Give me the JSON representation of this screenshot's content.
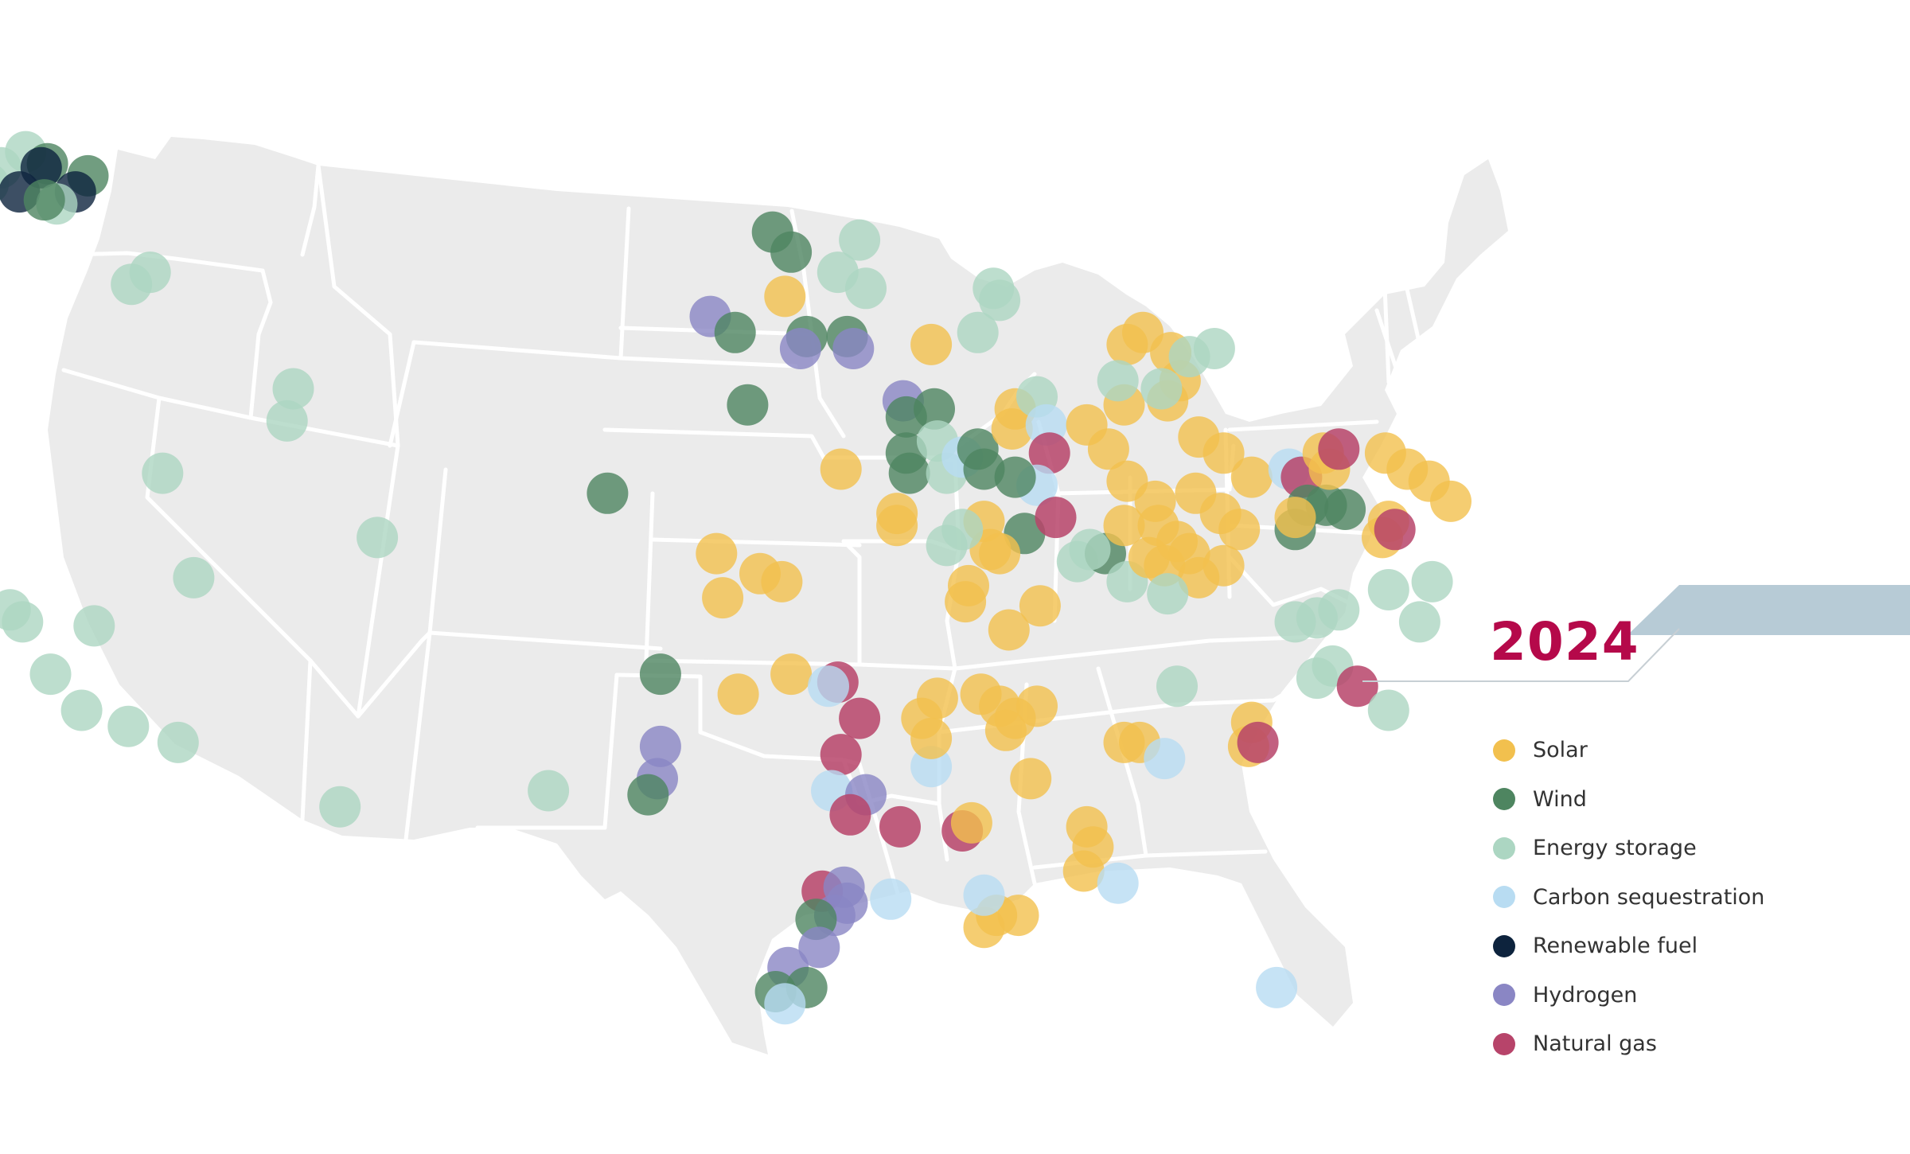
{
  "year": "2024",
  "colors": {
    "year_text": "#b5094a",
    "ribbon": "#b7cbd6",
    "land": "#ebebeb",
    "border": "#ffffff"
  },
  "legend": [
    {
      "key": "solar",
      "label": "Solar",
      "color": "#f2c04e"
    },
    {
      "key": "wind",
      "label": "Wind",
      "color": "#4e8560"
    },
    {
      "key": "storage",
      "label": "Energy storage",
      "color": "#acd6c2"
    },
    {
      "key": "carbon",
      "label": "Carbon sequestration",
      "color": "#b8dcf2"
    },
    {
      "key": "renewable_fuel",
      "label": "Renewable fuel",
      "color": "#0d233d"
    },
    {
      "key": "hydrogen",
      "label": "Hydrogen",
      "color": "#8a86c4"
    },
    {
      "key": "natural_gas",
      "label": "Natural gas",
      "color": "#b7446a"
    }
  ],
  "projects": [
    {
      "type": "storage",
      "lat": 48.9,
      "lon": -121.4
    },
    {
      "type": "storage",
      "lat": 48.5,
      "lon": -122.2
    },
    {
      "type": "wind",
      "lat": 48.6,
      "lon": -120.7
    },
    {
      "type": "storage",
      "lat": 48.1,
      "lon": -122.6
    },
    {
      "type": "renewable_fuel",
      "lat": 48.5,
      "lon": -120.9
    },
    {
      "type": "wind",
      "lat": 48.3,
      "lon": -119.4
    },
    {
      "type": "renewable_fuel",
      "lat": 47.9,
      "lon": -121.6
    },
    {
      "type": "renewable_fuel",
      "lat": 47.9,
      "lon": -119.8
    },
    {
      "type": "storage",
      "lat": 47.6,
      "lon": -120.4
    },
    {
      "type": "wind",
      "lat": 47.7,
      "lon": -120.8
    },
    {
      "type": "storage",
      "lat": 47.3,
      "lon": -123.3
    },
    {
      "type": "storage",
      "lat": 47.0,
      "lon": -122.9
    },
    {
      "type": "storage",
      "lat": 46.6,
      "lon": -123.1
    },
    {
      "type": "wind",
      "lat": 46.7,
      "lon": -124.0
    },
    {
      "type": "storage",
      "lat": 45.6,
      "lon": -118.0
    },
    {
      "type": "storage",
      "lat": 45.9,
      "lon": -117.4
    },
    {
      "type": "storage",
      "lat": 44.3,
      "lon": -124.0
    },
    {
      "type": "storage",
      "lat": 41.9,
      "lon": -123.6
    },
    {
      "type": "storage",
      "lat": 41.3,
      "lon": -124.0
    },
    {
      "type": "storage",
      "lat": 43.0,
      "lon": -112.8
    },
    {
      "type": "storage",
      "lat": 42.2,
      "lon": -113.0
    },
    {
      "type": "storage",
      "lat": 40.9,
      "lon": -117.0
    },
    {
      "type": "storage",
      "lat": 39.3,
      "lon": -110.1
    },
    {
      "type": "storage",
      "lat": 38.3,
      "lon": -116.0
    },
    {
      "type": "storage",
      "lat": 37.5,
      "lon": -121.9
    },
    {
      "type": "storage",
      "lat": 37.2,
      "lon": -121.5
    },
    {
      "type": "storage",
      "lat": 37.1,
      "lon": -119.2
    },
    {
      "type": "storage",
      "lat": 35.9,
      "lon": -120.6
    },
    {
      "type": "storage",
      "lat": 35.0,
      "lon": -119.6
    },
    {
      "type": "storage",
      "lat": 34.6,
      "lon": -118.1
    },
    {
      "type": "storage",
      "lat": 34.2,
      "lon": -116.5
    },
    {
      "type": "storage",
      "lat": 32.6,
      "lon": -111.3
    },
    {
      "type": "storage",
      "lat": 33.0,
      "lon": -104.6
    },
    {
      "type": "wind",
      "lat": 40.4,
      "lon": -102.7
    },
    {
      "type": "wind",
      "lat": 35.9,
      "lon": -101.0
    },
    {
      "type": "hydrogen",
      "lat": 34.1,
      "lon": -101.0
    },
    {
      "type": "hydrogen",
      "lat": 33.3,
      "lon": -101.1
    },
    {
      "type": "wind",
      "lat": 32.9,
      "lon": -101.4
    },
    {
      "type": "solar",
      "lat": 38.9,
      "lon": -99.2
    },
    {
      "type": "solar",
      "lat": 38.4,
      "lon": -97.8
    },
    {
      "type": "solar",
      "lat": 38.2,
      "lon": -97.1
    },
    {
      "type": "solar",
      "lat": 37.8,
      "lon": -99.0
    },
    {
      "type": "solar",
      "lat": 35.4,
      "lon": -98.5
    },
    {
      "type": "solar",
      "lat": 35.9,
      "lon": -96.8
    },
    {
      "type": "natural_gas",
      "lat": 35.7,
      "lon": -95.3
    },
    {
      "type": "carbon",
      "lat": 35.6,
      "lon": -95.6
    },
    {
      "type": "natural_gas",
      "lat": 34.8,
      "lon": -94.6
    },
    {
      "type": "natural_gas",
      "lat": 33.9,
      "lon": -95.2
    },
    {
      "type": "carbon",
      "lat": 33.0,
      "lon": -95.5
    },
    {
      "type": "hydrogen",
      "lat": 32.9,
      "lon": -94.4
    },
    {
      "type": "natural_gas",
      "lat": 32.4,
      "lon": -94.9
    },
    {
      "type": "natural_gas",
      "lat": 32.1,
      "lon": -93.3
    },
    {
      "type": "carbon",
      "lat": 33.6,
      "lon": -92.3
    },
    {
      "type": "natural_gas",
      "lat": 32.0,
      "lon": -91.3
    },
    {
      "type": "solar",
      "lat": 32.2,
      "lon": -91.0
    },
    {
      "type": "natural_gas",
      "lat": 30.5,
      "lon": -95.8
    },
    {
      "type": "hydrogen",
      "lat": 30.2,
      "lon": -95.0
    },
    {
      "type": "hydrogen",
      "lat": 29.9,
      "lon": -95.4
    },
    {
      "type": "hydrogen",
      "lat": 30.6,
      "lon": -95.1
    },
    {
      "type": "wind",
      "lat": 29.8,
      "lon": -96.0
    },
    {
      "type": "carbon",
      "lat": 30.3,
      "lon": -93.6
    },
    {
      "type": "hydrogen",
      "lat": 29.1,
      "lon": -95.9
    },
    {
      "type": "hydrogen",
      "lat": 28.6,
      "lon": -96.9
    },
    {
      "type": "wind",
      "lat": 28.0,
      "lon": -97.3
    },
    {
      "type": "wind",
      "lat": 28.1,
      "lon": -96.3
    },
    {
      "type": "carbon",
      "lat": 27.7,
      "lon": -97.0
    },
    {
      "type": "solar",
      "lat": 35.3,
      "lon": -92.1
    },
    {
      "type": "solar",
      "lat": 34.8,
      "lon": -92.6
    },
    {
      "type": "solar",
      "lat": 34.3,
      "lon": -92.3
    },
    {
      "type": "solar",
      "lat": 35.4,
      "lon": -90.7
    },
    {
      "type": "solar",
      "lat": 35.1,
      "lon": -90.1
    },
    {
      "type": "solar",
      "lat": 34.8,
      "lon": -89.6
    },
    {
      "type": "solar",
      "lat": 34.5,
      "lon": -89.9
    },
    {
      "type": "solar",
      "lat": 35.1,
      "lon": -88.9
    },
    {
      "type": "solar",
      "lat": 33.3,
      "lon": -89.1
    },
    {
      "type": "solar",
      "lat": 32.1,
      "lon": -87.3
    },
    {
      "type": "solar",
      "lat": 31.6,
      "lon": -87.1
    },
    {
      "type": "solar",
      "lat": 31.0,
      "lon": -87.4
    },
    {
      "type": "solar",
      "lat": 29.9,
      "lon": -90.2
    },
    {
      "type": "solar",
      "lat": 29.9,
      "lon": -89.5
    },
    {
      "type": "solar",
      "lat": 29.6,
      "lon": -90.6
    },
    {
      "type": "carbon",
      "lat": 30.4,
      "lon": -90.6
    },
    {
      "type": "carbon",
      "lat": 30.7,
      "lon": -86.3
    },
    {
      "type": "solar",
      "lat": 34.2,
      "lon": -86.1
    },
    {
      "type": "solar",
      "lat": 34.2,
      "lon": -85.6
    },
    {
      "type": "carbon",
      "lat": 33.8,
      "lon": -84.8
    },
    {
      "type": "storage",
      "lat": 35.6,
      "lon": -84.4
    },
    {
      "type": "solar",
      "lat": 34.1,
      "lon": -82.1
    },
    {
      "type": "solar",
      "lat": 34.7,
      "lon": -82.0
    },
    {
      "type": "natural_gas",
      "lat": 34.2,
      "lon": -81.8
    },
    {
      "type": "storage",
      "lat": 36.1,
      "lon": -79.4
    },
    {
      "type": "natural_gas",
      "lat": 35.6,
      "lon": -78.6
    },
    {
      "type": "storage",
      "lat": 35.0,
      "lon": -77.6
    },
    {
      "type": "carbon",
      "lat": 28.1,
      "lon": -81.2
    },
    {
      "type": "storage",
      "lat": 38.0,
      "lon": -77.6
    },
    {
      "type": "storage",
      "lat": 37.2,
      "lon": -76.6
    },
    {
      "type": "storage",
      "lat": 38.2,
      "lon": -76.2
    },
    {
      "type": "storage",
      "lat": 37.5,
      "lon": -79.2
    },
    {
      "type": "storage",
      "lat": 37.2,
      "lon": -80.6
    },
    {
      "type": "wind",
      "lat": 46.9,
      "lon": -97.4
    },
    {
      "type": "wind",
      "lat": 46.4,
      "lon": -96.8
    },
    {
      "type": "storage",
      "lat": 46.7,
      "lon": -94.6
    },
    {
      "type": "storage",
      "lat": 45.9,
      "lon": -95.3
    },
    {
      "type": "storage",
      "lat": 45.5,
      "lon": -94.4
    },
    {
      "type": "solar",
      "lat": 45.3,
      "lon": -97.0
    },
    {
      "type": "hydrogen",
      "lat": 44.8,
      "lon": -99.4
    },
    {
      "type": "wind",
      "lat": 44.4,
      "lon": -98.6
    },
    {
      "type": "wind",
      "lat": 44.3,
      "lon": -96.3
    },
    {
      "type": "hydrogen",
      "lat": 44.0,
      "lon": -96.5
    },
    {
      "type": "wind",
      "lat": 44.3,
      "lon": -95.0
    },
    {
      "type": "hydrogen",
      "lat": 44.0,
      "lon": -94.8
    },
    {
      "type": "wind",
      "lat": 42.6,
      "lon": -98.2
    },
    {
      "type": "solar",
      "lat": 41.0,
      "lon": -95.2
    },
    {
      "type": "storage",
      "lat": 45.5,
      "lon": -90.3
    },
    {
      "type": "storage",
      "lat": 45.2,
      "lon": -90.1
    },
    {
      "type": "storage",
      "lat": 44.4,
      "lon": -90.8
    },
    {
      "type": "solar",
      "lat": 44.1,
      "lon": -92.3
    },
    {
      "type": "hydrogen",
      "lat": 42.7,
      "lon": -93.2
    },
    {
      "type": "wind",
      "lat": 42.3,
      "lon": -93.1
    },
    {
      "type": "wind",
      "lat": 42.5,
      "lon": -92.2
    },
    {
      "type": "wind",
      "lat": 41.4,
      "lon": -93.1
    },
    {
      "type": "wind",
      "lat": 40.9,
      "lon": -93.0
    },
    {
      "type": "storage",
      "lat": 41.7,
      "lon": -92.1
    },
    {
      "type": "storage",
      "lat": 40.9,
      "lon": -91.8
    },
    {
      "type": "carbon",
      "lat": 41.3,
      "lon": -91.3
    },
    {
      "type": "wind",
      "lat": 41.5,
      "lon": -90.8
    },
    {
      "type": "wind",
      "lat": 41.0,
      "lon": -90.6
    },
    {
      "type": "solar",
      "lat": 42.0,
      "lon": -89.7
    },
    {
      "type": "solar",
      "lat": 42.5,
      "lon": -89.6
    },
    {
      "type": "storage",
      "lat": 42.8,
      "lon": -88.9
    },
    {
      "type": "carbon",
      "lat": 42.1,
      "lon": -88.6
    },
    {
      "type": "natural_gas",
      "lat": 41.4,
      "lon": -88.5
    },
    {
      "type": "carbon",
      "lat": 40.6,
      "lon": -88.9
    },
    {
      "type": "wind",
      "lat": 40.8,
      "lon": -89.6
    },
    {
      "type": "wind",
      "lat": 39.4,
      "lon": -89.3
    },
    {
      "type": "natural_gas",
      "lat": 39.8,
      "lon": -88.3
    },
    {
      "type": "solar",
      "lat": 39.7,
      "lon": -90.6
    },
    {
      "type": "solar",
      "lat": 39.0,
      "lon": -90.4
    },
    {
      "type": "storage",
      "lat": 39.1,
      "lon": -91.8
    },
    {
      "type": "storage",
      "lat": 39.5,
      "lon": -91.3
    },
    {
      "type": "solar",
      "lat": 39.6,
      "lon": -93.4
    },
    {
      "type": "solar",
      "lat": 39.9,
      "lon": -93.4
    },
    {
      "type": "solar",
      "lat": 38.1,
      "lon": -91.1
    },
    {
      "type": "solar",
      "lat": 37.7,
      "lon": -91.2
    },
    {
      "type": "solar",
      "lat": 37.0,
      "lon": -89.8
    },
    {
      "type": "solar",
      "lat": 37.6,
      "lon": -88.8
    },
    {
      "type": "solar",
      "lat": 38.9,
      "lon": -90.1
    },
    {
      "type": "storage",
      "lat": 38.7,
      "lon": -87.6
    },
    {
      "type": "wind",
      "lat": 38.9,
      "lon": -86.7
    },
    {
      "type": "storage",
      "lat": 39.0,
      "lon": -87.2
    },
    {
      "type": "storage",
      "lat": 38.2,
      "lon": -86.0
    },
    {
      "type": "solar",
      "lat": 39.6,
      "lon": -86.1
    },
    {
      "type": "solar",
      "lat": 38.8,
      "lon": -85.3
    },
    {
      "type": "solar",
      "lat": 38.6,
      "lon": -84.8
    },
    {
      "type": "solar",
      "lat": 39.2,
      "lon": -84.4
    },
    {
      "type": "solar",
      "lat": 38.9,
      "lon": -84.0
    },
    {
      "type": "solar",
      "lat": 39.6,
      "lon": -85.0
    },
    {
      "type": "solar",
      "lat": 40.2,
      "lon": -85.1
    },
    {
      "type": "solar",
      "lat": 40.7,
      "lon": -86.0
    },
    {
      "type": "solar",
      "lat": 41.5,
      "lon": -86.6
    },
    {
      "type": "solar",
      "lat": 42.1,
      "lon": -87.3
    },
    {
      "type": "solar",
      "lat": 42.6,
      "lon": -86.1
    },
    {
      "type": "solar",
      "lat": 42.7,
      "lon": -84.7
    },
    {
      "type": "solar",
      "lat": 43.2,
      "lon": -84.3
    },
    {
      "type": "solar",
      "lat": 43.9,
      "lon": -84.6
    },
    {
      "type": "solar",
      "lat": 44.4,
      "lon": -85.5
    },
    {
      "type": "solar",
      "lat": 44.1,
      "lon": -86.0
    },
    {
      "type": "storage",
      "lat": 43.2,
      "lon": -86.3
    },
    {
      "type": "storage",
      "lat": 43.8,
      "lon": -84.0
    },
    {
      "type": "storage",
      "lat": 44.0,
      "lon": -83.2
    },
    {
      "type": "storage",
      "lat": 43.0,
      "lon": -84.9
    },
    {
      "type": "solar",
      "lat": 41.8,
      "lon": -83.7
    },
    {
      "type": "solar",
      "lat": 41.4,
      "lon": -82.9
    },
    {
      "type": "solar",
      "lat": 40.4,
      "lon": -83.8
    },
    {
      "type": "solar",
      "lat": 39.9,
      "lon": -83.0
    },
    {
      "type": "solar",
      "lat": 39.5,
      "lon": -82.4
    },
    {
      "type": "solar",
      "lat": 40.8,
      "lon": -82.0
    },
    {
      "type": "solar",
      "lat": 38.6,
      "lon": -82.9
    },
    {
      "type": "solar",
      "lat": 38.3,
      "lon": -83.7
    },
    {
      "type": "storage",
      "lat": 37.9,
      "lon": -84.7
    },
    {
      "type": "carbon",
      "lat": 41.0,
      "lon": -80.8
    },
    {
      "type": "natural_gas",
      "lat": 40.8,
      "lon": -80.4
    },
    {
      "type": "wind",
      "lat": 40.1,
      "lon": -80.2
    },
    {
      "type": "wind",
      "lat": 40.1,
      "lon": -79.6
    },
    {
      "type": "wind",
      "lat": 40.0,
      "lon": -79.0
    },
    {
      "type": "wind",
      "lat": 39.5,
      "lon": -80.6
    },
    {
      "type": "solar",
      "lat": 39.8,
      "lon": -80.6
    },
    {
      "type": "solar",
      "lat": 41.4,
      "lon": -79.7
    },
    {
      "type": "solar",
      "lat": 41.0,
      "lon": -79.5
    },
    {
      "type": "solar",
      "lat": 41.4,
      "lon": -77.7
    },
    {
      "type": "solar",
      "lat": 41.0,
      "lon": -77.0
    },
    {
      "type": "solar",
      "lat": 40.7,
      "lon": -76.3
    },
    {
      "type": "solar",
      "lat": 40.2,
      "lon": -75.6
    },
    {
      "type": "solar",
      "lat": 39.7,
      "lon": -77.6
    },
    {
      "type": "solar",
      "lat": 39.3,
      "lon": -77.8
    },
    {
      "type": "natural_gas",
      "lat": 39.5,
      "lon": -77.4
    },
    {
      "type": "natural_gas",
      "lat": 41.5,
      "lon": -79.2
    },
    {
      "type": "storage",
      "lat": 37.3,
      "lon": -79.9
    },
    {
      "type": "storage",
      "lat": 35.8,
      "lon": -79.9
    }
  ]
}
